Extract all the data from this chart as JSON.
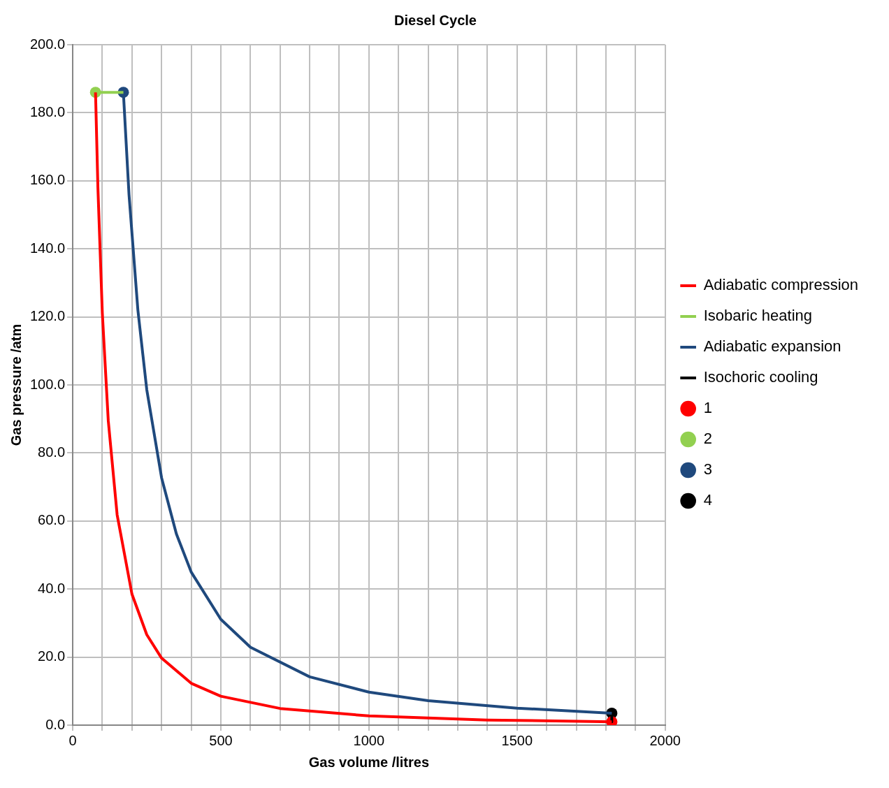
{
  "chart_data": {
    "type": "line",
    "title": "Diesel Cycle",
    "xlabel": "Gas volume /litres",
    "ylabel": "Gas pressure /atm",
    "xlim": [
      0,
      2000
    ],
    "xticks": [
      0,
      {
        "value": 100,
        "label": null
      },
      {
        "value": 200,
        "label": null
      },
      {
        "value": 300,
        "label": null
      },
      {
        "value": 400,
        "label": null
      },
      500,
      {
        "value": 600,
        "label": null
      },
      {
        "value": 700,
        "label": null
      },
      {
        "value": 800,
        "label": null
      },
      {
        "value": 900,
        "label": null
      },
      1000,
      {
        "value": 1100,
        "label": null
      },
      {
        "value": 1200,
        "label": null
      },
      {
        "value": 1300,
        "label": null
      },
      {
        "value": 1400,
        "label": null
      },
      1500,
      {
        "value": 1600,
        "label": null
      },
      {
        "value": 1700,
        "label": null
      },
      {
        "value": 1800,
        "label": null
      },
      {
        "value": 1900,
        "label": null
      },
      2000
    ],
    "ylim": [
      0,
      200
    ],
    "yticks": [
      {
        "value": 0,
        "label": "0.0"
      },
      {
        "value": 20,
        "label": "20.0"
      },
      {
        "value": 40,
        "label": "40.0"
      },
      {
        "value": 60,
        "label": "60.0"
      },
      {
        "value": 80,
        "label": "80.0"
      },
      {
        "value": 100,
        "label": "100.0"
      },
      {
        "value": 120,
        "label": "120.0"
      },
      {
        "value": 140,
        "label": "140.0"
      },
      {
        "value": 160,
        "label": "160.0"
      },
      {
        "value": 180,
        "label": "180.0"
      },
      {
        "value": 200,
        "label": "200.0"
      }
    ],
    "grid": true,
    "legend": "right",
    "series": [
      {
        "type": "scatter",
        "name": "1",
        "color": "#ff0000",
        "marker": "circle",
        "x": [
          1820
        ],
        "values": [
          1.0
        ]
      },
      {
        "type": "scatter",
        "name": "2",
        "color": "#92d050",
        "marker": "circle",
        "x": [
          77
        ],
        "values": [
          186
        ]
      },
      {
        "type": "scatter",
        "name": "3",
        "color": "#1f497d",
        "marker": "circle",
        "x": [
          171
        ],
        "values": [
          186
        ]
      },
      {
        "type": "scatter",
        "name": "4",
        "color": "#000000",
        "marker": "circle",
        "x": [
          1820
        ],
        "values": [
          3.5
        ]
      },
      {
        "type": "line",
        "name": "Adiabatic compression",
        "color": "#ff0000",
        "marker": "none",
        "x": [
          1820,
          1400,
          1000,
          700,
          500,
          400,
          300,
          250,
          200,
          150,
          120,
          100,
          85,
          77
        ],
        "values": [
          1.0,
          1.5,
          2.7,
          4.9,
          8.5,
          12.3,
          19.7,
          26.6,
          38.5,
          61.8,
          89.5,
          121,
          158,
          186
        ]
      },
      {
        "type": "line",
        "name": "Isobaric heating",
        "color": "#92d050",
        "marker": "none",
        "x": [
          77,
          171
        ],
        "values": [
          186,
          186
        ]
      },
      {
        "type": "line",
        "name": "Adiabatic expansion",
        "color": "#1f497d",
        "marker": "none",
        "x": [
          171,
          190,
          220,
          250,
          300,
          350,
          400,
          500,
          600,
          800,
          1000,
          1200,
          1500,
          1820
        ],
        "values": [
          186,
          156,
          122,
          98.6,
          72.7,
          56.2,
          45,
          31.1,
          22.9,
          14.2,
          9.7,
          7.2,
          5.0,
          3.5
        ]
      },
      {
        "type": "line",
        "name": "Isochoric cooling",
        "color": "#000000",
        "marker": "none",
        "x": [
          1820,
          1820
        ],
        "values": [
          3.5,
          1.0
        ]
      }
    ]
  }
}
